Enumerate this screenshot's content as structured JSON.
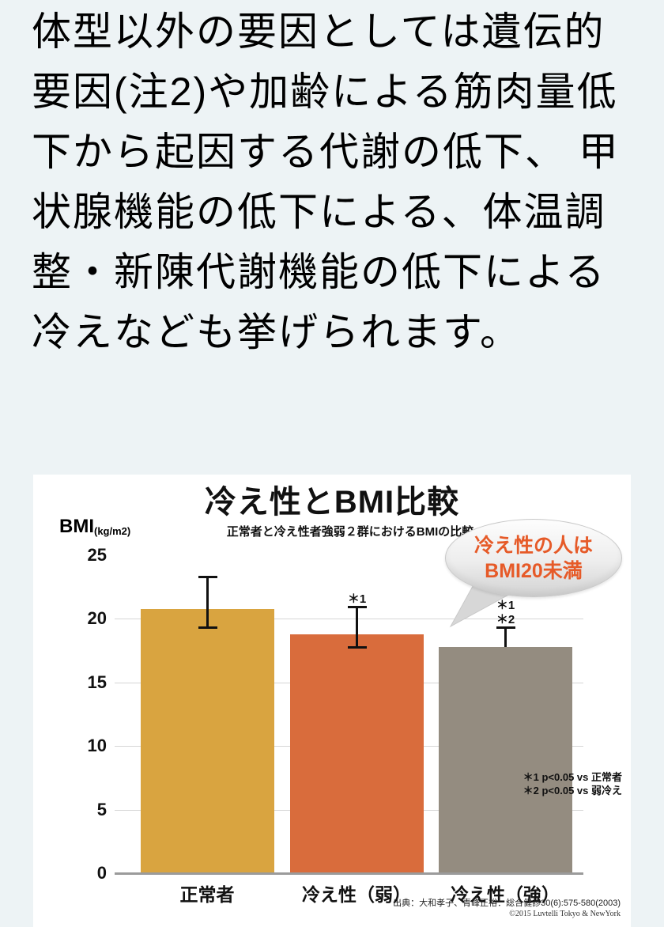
{
  "page": {
    "background_color": "#edf3f5",
    "intro_text": "体型以外の要因としては遺伝的要因(注2)や加齢による筋肉量低下から起因する代謝の低下、 甲状腺機能の低下による、体温調整・新陳代謝機能の低下による冷えなども挙げられます。"
  },
  "chart_data": {
    "type": "bar",
    "title": "冷え性とBMI比較",
    "subtitle": "正常者と冷え性者強弱２群におけるBMIの比較",
    "ylabel": "BMI",
    "ylabel_unit": "(kg/m2)",
    "ylim": [
      0,
      25
    ],
    "yticks": [
      0,
      5,
      10,
      15,
      20,
      25
    ],
    "gridlines_at": [
      5,
      10,
      15,
      20
    ],
    "grid": "horizontal",
    "legend": "none",
    "categories": [
      "正常者",
      "冷え性（弱）",
      "冷え性（強）"
    ],
    "values": [
      20.8,
      18.8,
      17.8
    ],
    "bar_colors": [
      "#d9a440",
      "#d96c3c",
      "#948c80"
    ],
    "error_bars": [
      {
        "upper": 23.4,
        "lower": 19.3,
        "lower_cap": true
      },
      {
        "upper": 21.0,
        "lower": 17.7,
        "lower_cap": true
      },
      {
        "upper": 19.4,
        "lower": 17.8,
        "lower_cap": false
      }
    ],
    "significance_labels": [
      [],
      [
        "＊1"
      ],
      [
        "＊1",
        "＊2"
      ]
    ],
    "footnotes": [
      "＊1 p<0.05 vs 正常者",
      "＊2 p<0.05 vs 弱冷え"
    ],
    "callout": {
      "lines": [
        "冷え性の人は",
        "BMI20未満"
      ],
      "text_color": "#e65a28"
    },
    "source_lines": [
      "出典：大和孝子、青峰正裕：総合健診30(6):575-580(2003)",
      "©2015 Luvtelli Tokyo & NewYork"
    ]
  }
}
